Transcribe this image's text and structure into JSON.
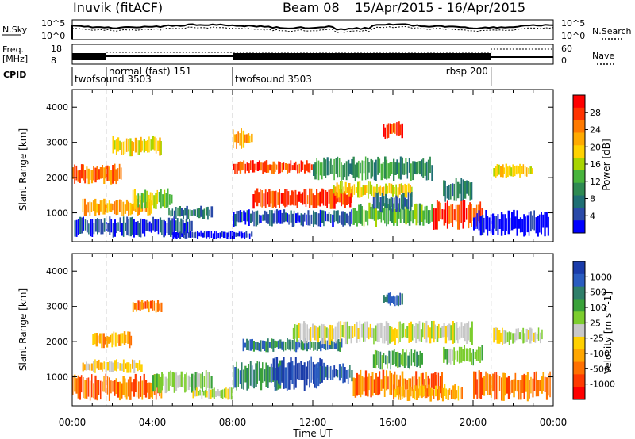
{
  "header": {
    "station": "Inuvik (fitACF)",
    "beam": "Beam 08",
    "date_range": "15/Apr/2015 - 16/Apr/2015"
  },
  "summary_panels": {
    "nsky_label": "N.Sky",
    "freq_label_line1": "Freq.",
    "freq_label_line2": "[MHz]",
    "cpid_label": "CPID",
    "nsearch_label": "N.Search",
    "nave_label": "Nave",
    "noise_ticks_left": [
      "10^5",
      "10^0"
    ],
    "noise_ticks_right": [
      "10^5",
      "10^0"
    ],
    "freq_ticks": [
      "18",
      "8"
    ],
    "nave_ticks": [
      "60",
      "0"
    ],
    "cpid_modes": [
      {
        "label": "twofsound 3503",
        "start_hour": 0,
        "end_hour": 1.7
      },
      {
        "label": "normal (fast) 151",
        "start_hour": 1.7,
        "end_hour": 8.0
      },
      {
        "label": "twofsound 3503",
        "start_hour": 8.0,
        "end_hour": 20.9
      },
      {
        "label": "rbsp 200",
        "start_hour": 20.9,
        "end_hour": 24.0
      }
    ]
  },
  "x_axis": {
    "label": "Time UT",
    "ticks": [
      "00:00",
      "04:00",
      "08:00",
      "12:00",
      "16:00",
      "20:00",
      "00:00"
    ],
    "range_hours": [
      0,
      24
    ]
  },
  "chart_data": [
    {
      "type": "heatmap",
      "panel": "power",
      "ylabel": "Slant Range [km]",
      "yticks": [
        1000,
        2000,
        3000,
        4000
      ],
      "ylim": [
        180,
        4500
      ],
      "xlim": [
        0,
        24
      ],
      "colorbar": {
        "label": "Power [dB]",
        "ticks": [
          "28",
          "24",
          "20",
          "16",
          "12",
          "8",
          "4"
        ],
        "colors": [
          "#ff0000",
          "#ff3300",
          "#ff7a00",
          "#ffaa00",
          "#ffd200",
          "#a8d400",
          "#48b43c",
          "#2e8a52",
          "#1f6f74",
          "#2a4aa8",
          "#0000ff"
        ]
      },
      "regions": [
        {
          "t0": 0.1,
          "t1": 6.0,
          "r0": 300,
          "r1": 900,
          "level": 9
        },
        {
          "t0": 5.0,
          "t1": 9.0,
          "r0": 250,
          "r1": 500,
          "level": 10
        },
        {
          "t0": 0.5,
          "t1": 4.0,
          "r0": 900,
          "r1": 1400,
          "level": 3
        },
        {
          "t0": 0.0,
          "t1": 2.5,
          "r0": 1800,
          "r1": 2400,
          "level": 2
        },
        {
          "t0": 3.0,
          "t1": 5.0,
          "r0": 1100,
          "r1": 1700,
          "level": 5
        },
        {
          "t0": 4.8,
          "t1": 7.0,
          "r0": 800,
          "r1": 1200,
          "level": 8
        },
        {
          "t0": 8.0,
          "t1": 14.0,
          "r0": 600,
          "r1": 1100,
          "level": 9
        },
        {
          "t0": 9.0,
          "t1": 14.0,
          "r0": 1100,
          "r1": 1700,
          "level": 1
        },
        {
          "t0": 8.0,
          "t1": 12.0,
          "r0": 2100,
          "r1": 2500,
          "level": 1
        },
        {
          "t0": 12.0,
          "t1": 18.0,
          "r0": 1900,
          "r1": 2600,
          "level": 7
        },
        {
          "t0": 13.0,
          "t1": 17.0,
          "r0": 1400,
          "r1": 1900,
          "level": 4
        },
        {
          "t0": 14.0,
          "t1": 18.0,
          "r0": 600,
          "r1": 1300,
          "level": 6
        },
        {
          "t0": 15.0,
          "t1": 17.0,
          "r0": 1000,
          "r1": 1600,
          "level": 8
        },
        {
          "t0": 18.0,
          "t1": 20.5,
          "r0": 500,
          "r1": 1400,
          "level": 1
        },
        {
          "t0": 18.5,
          "t1": 20.0,
          "r0": 1300,
          "r1": 2000,
          "level": 8
        },
        {
          "t0": 20.0,
          "t1": 23.8,
          "r0": 300,
          "r1": 1100,
          "level": 10
        },
        {
          "t0": 21.0,
          "t1": 23.0,
          "r0": 2000,
          "r1": 2400,
          "level": 4
        },
        {
          "t0": 15.5,
          "t1": 16.5,
          "r0": 3100,
          "r1": 3600,
          "level": 1
        },
        {
          "t0": 8.0,
          "t1": 9.0,
          "r0": 2800,
          "r1": 3400,
          "level": 3
        },
        {
          "t0": 2.0,
          "t1": 4.5,
          "r0": 2600,
          "r1": 3200,
          "level": 4
        }
      ]
    },
    {
      "type": "heatmap",
      "panel": "velocity",
      "ylabel": "Slant Range [km]",
      "yticks": [
        1000,
        2000,
        3000,
        4000
      ],
      "ylim": [
        180,
        4500
      ],
      "xlim": [
        0,
        24
      ],
      "colorbar": {
        "label": "Velocity [m s^-1]",
        "ticks": [
          "1000",
          "500",
          "100",
          "25",
          "-25",
          "-100",
          "-500",
          "-1000"
        ],
        "colors": [
          "#1a3caa",
          "#2a5cc0",
          "#2f7f6a",
          "#3aa23a",
          "#7ccd2e",
          "#c8c8c8",
          "#ffd000",
          "#ffa600",
          "#ff7000",
          "#ff3a00",
          "#ff0000"
        ]
      },
      "regions": [
        {
          "t0": 0.0,
          "t1": 4.5,
          "r0": 300,
          "r1": 1100,
          "level": 8
        },
        {
          "t0": 0.5,
          "t1": 3.5,
          "r0": 1100,
          "r1": 1500,
          "level": 6
        },
        {
          "t0": 1.0,
          "t1": 3.0,
          "r0": 1800,
          "r1": 2300,
          "level": 7
        },
        {
          "t0": 4.0,
          "t1": 7.0,
          "r0": 500,
          "r1": 1200,
          "level": 4
        },
        {
          "t0": 6.0,
          "t1": 8.0,
          "r0": 350,
          "r1": 700,
          "level": 5
        },
        {
          "t0": 8.0,
          "t1": 10.5,
          "r0": 600,
          "r1": 1500,
          "level": 2
        },
        {
          "t0": 10.0,
          "t1": 12.5,
          "r0": 600,
          "r1": 1600,
          "level": 0
        },
        {
          "t0": 12.0,
          "t1": 14.0,
          "r0": 800,
          "r1": 1400,
          "level": 1
        },
        {
          "t0": 8.5,
          "t1": 13.5,
          "r0": 1700,
          "r1": 2100,
          "level": 2
        },
        {
          "t0": 11.0,
          "t1": 20.0,
          "r0": 1900,
          "r1": 2600,
          "level": 5
        },
        {
          "t0": 14.0,
          "t1": 18.5,
          "r0": 400,
          "r1": 1200,
          "level": 8
        },
        {
          "t0": 16.0,
          "t1": 19.5,
          "r0": 300,
          "r1": 800,
          "level": 7
        },
        {
          "t0": 15.0,
          "t1": 17.5,
          "r0": 1200,
          "r1": 1800,
          "level": 3
        },
        {
          "t0": 18.5,
          "t1": 20.5,
          "r0": 1300,
          "r1": 1900,
          "level": 4
        },
        {
          "t0": 20.0,
          "t1": 23.9,
          "r0": 300,
          "r1": 1200,
          "level": 8
        },
        {
          "t0": 21.0,
          "t1": 23.5,
          "r0": 1900,
          "r1": 2400,
          "level": 5
        },
        {
          "t0": 3.0,
          "t1": 4.5,
          "r0": 2800,
          "r1": 3200,
          "level": 8
        },
        {
          "t0": 15.5,
          "t1": 16.5,
          "r0": 3000,
          "r1": 3400,
          "level": 1
        }
      ]
    }
  ]
}
